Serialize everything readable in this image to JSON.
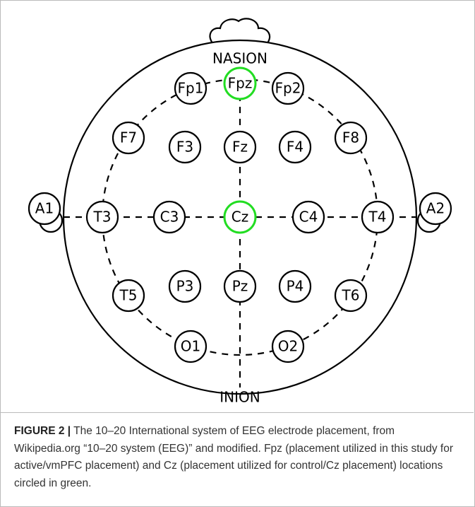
{
  "diagram": {
    "top_label": "NASION",
    "bottom_label": "INION",
    "nodes": [
      {
        "label": "Fp1"
      },
      {
        "label": "Fpz",
        "color": "#22dd22"
      },
      {
        "label": "Fp2"
      },
      {
        "label": "F7"
      },
      {
        "label": "F3"
      },
      {
        "label": "Fz"
      },
      {
        "label": "F4"
      },
      {
        "label": "F8"
      },
      {
        "label": "A1"
      },
      {
        "label": "T3"
      },
      {
        "label": "C3"
      },
      {
        "label": "Cz",
        "color": "#22dd22"
      },
      {
        "label": "C4"
      },
      {
        "label": "T4"
      },
      {
        "label": "A2"
      },
      {
        "label": "T5"
      },
      {
        "label": "P3"
      },
      {
        "label": "Pz"
      },
      {
        "label": "P4"
      },
      {
        "label": "T6"
      },
      {
        "label": "O1"
      },
      {
        "label": "O2"
      }
    ]
  },
  "caption": {
    "label": "FIGURE 2 |",
    "text": "The 10–20 International system of EEG electrode placement, from Wikipedia.org “10–20 system (EEG)” and modified. Fpz (placement utilized in this study for active/vmPFC placement) and Cz (placement utilized for control/Cz placement) locations circled in green."
  }
}
